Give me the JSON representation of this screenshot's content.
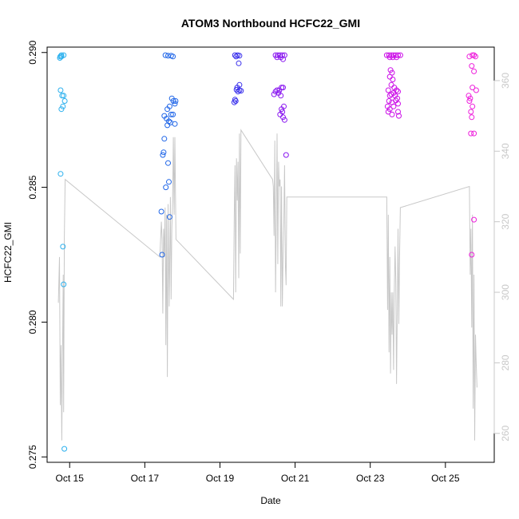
{
  "chart_data": {
    "type": "scatter",
    "title": "ATOM3 Northbound HCFC22_GMI",
    "xlabel": "Date",
    "ylabel": "HCFC22_GMI",
    "x_ticks": [
      "Oct 15",
      "Oct 17",
      "Oct 19",
      "Oct 21",
      "Oct 23",
      "Oct 25"
    ],
    "x_tick_days": [
      15,
      17,
      19,
      21,
      23,
      25
    ],
    "xlim_days": [
      14.4,
      26.3
    ],
    "ylim_left": [
      0.2748,
      0.2902
    ],
    "ylim_right": [
      251.8,
      369.5
    ],
    "y_ticks_left": [
      "0.275",
      "0.280",
      "0.285",
      "0.290"
    ],
    "y_ticks_right": [
      "260",
      "280",
      "300",
      "320",
      "340",
      "360"
    ],
    "grid": false,
    "colors": {
      "line": "#c8c8c8",
      "axis": "#000000",
      "right_axis": "#c8c8c8",
      "flight1": "#2bb0ee",
      "flight2": "#2066e8",
      "flight3": "#3a30ec",
      "flight4": "#8a18f0",
      "flight5": "#cc10e8",
      "flight6": "#ee20dc"
    },
    "series": [
      {
        "color_key": "flight1",
        "points": [
          [
            14.75,
            0.28985
          ],
          [
            14.78,
            0.2899
          ],
          [
            14.84,
            0.2899
          ],
          [
            14.78,
            0.28985
          ],
          [
            14.74,
            0.2898
          ],
          [
            14.76,
            0.2886
          ],
          [
            14.8,
            0.2884
          ],
          [
            14.84,
            0.2884
          ],
          [
            14.87,
            0.2882
          ],
          [
            14.82,
            0.288
          ],
          [
            14.78,
            0.2879
          ],
          [
            14.76,
            0.2855
          ],
          [
            14.82,
            0.2828
          ],
          [
            14.84,
            0.2814
          ],
          [
            14.86,
            0.2753
          ]
        ]
      },
      {
        "color_key": "flight2",
        "points": [
          [
            17.55,
            0.2899
          ],
          [
            17.62,
            0.28988
          ],
          [
            17.7,
            0.28988
          ],
          [
            17.75,
            0.28985
          ],
          [
            17.72,
            0.2883
          ],
          [
            17.76,
            0.2882
          ],
          [
            17.82,
            0.2882
          ],
          [
            17.8,
            0.2881
          ],
          [
            17.66,
            0.288
          ],
          [
            17.6,
            0.2879
          ],
          [
            17.7,
            0.2877
          ],
          [
            17.75,
            0.2877
          ],
          [
            17.52,
            0.28765
          ],
          [
            17.58,
            0.28755
          ],
          [
            17.64,
            0.28745
          ],
          [
            17.68,
            0.2874
          ],
          [
            17.6,
            0.2873
          ],
          [
            17.8,
            0.28735
          ],
          [
            17.52,
            0.2868
          ],
          [
            17.5,
            0.2863
          ],
          [
            17.48,
            0.2862
          ],
          [
            17.62,
            0.2859
          ],
          [
            17.64,
            0.2852
          ],
          [
            17.56,
            0.285
          ],
          [
            17.44,
            0.2841
          ],
          [
            17.66,
            0.2839
          ],
          [
            17.46,
            0.2825
          ]
        ]
      },
      {
        "color_key": "flight3",
        "points": [
          [
            19.4,
            0.2899
          ],
          [
            19.47,
            0.2899
          ],
          [
            19.52,
            0.28988
          ],
          [
            19.43,
            0.28985
          ],
          [
            19.5,
            0.2896
          ],
          [
            19.52,
            0.2888
          ],
          [
            19.46,
            0.2887
          ],
          [
            19.44,
            0.28862
          ],
          [
            19.52,
            0.2886
          ],
          [
            19.56,
            0.28858
          ],
          [
            19.48,
            0.28855
          ],
          [
            19.4,
            0.28825
          ],
          [
            19.42,
            0.2882
          ],
          [
            19.38,
            0.28815
          ]
        ]
      },
      {
        "color_key": "flight4",
        "points": [
          [
            20.48,
            0.2899
          ],
          [
            20.54,
            0.2899
          ],
          [
            20.6,
            0.2899
          ],
          [
            20.66,
            0.2899
          ],
          [
            20.72,
            0.2899
          ],
          [
            20.52,
            0.28982
          ],
          [
            20.62,
            0.28982
          ],
          [
            20.68,
            0.28975
          ],
          [
            20.64,
            0.2887
          ],
          [
            20.68,
            0.2887
          ],
          [
            20.52,
            0.2886
          ],
          [
            20.58,
            0.2886
          ],
          [
            20.48,
            0.28855
          ],
          [
            20.56,
            0.2885
          ],
          [
            20.44,
            0.28845
          ],
          [
            20.62,
            0.2884
          ],
          [
            20.7,
            0.288
          ],
          [
            20.64,
            0.2879
          ],
          [
            20.66,
            0.2878
          ],
          [
            20.6,
            0.2877
          ],
          [
            20.68,
            0.2876
          ],
          [
            20.72,
            0.2875
          ],
          [
            20.76,
            0.2862
          ]
        ]
      },
      {
        "color_key": "flight5",
        "points": [
          [
            23.44,
            0.2899
          ],
          [
            23.5,
            0.2899
          ],
          [
            23.56,
            0.2899
          ],
          [
            23.62,
            0.2899
          ],
          [
            23.68,
            0.2899
          ],
          [
            23.74,
            0.2899
          ],
          [
            23.8,
            0.2899
          ],
          [
            23.52,
            0.28982
          ],
          [
            23.6,
            0.28982
          ],
          [
            23.7,
            0.28982
          ],
          [
            23.54,
            0.28935
          ],
          [
            23.58,
            0.28925
          ],
          [
            23.52,
            0.2891
          ],
          [
            23.6,
            0.289
          ],
          [
            23.56,
            0.2888
          ],
          [
            23.64,
            0.2887
          ],
          [
            23.7,
            0.2886
          ],
          [
            23.48,
            0.2886
          ],
          [
            23.74,
            0.28855
          ],
          [
            23.62,
            0.2885
          ],
          [
            23.56,
            0.28845
          ],
          [
            23.52,
            0.2884
          ],
          [
            23.66,
            0.2884
          ],
          [
            23.72,
            0.2883
          ],
          [
            23.68,
            0.28822
          ],
          [
            23.5,
            0.2882
          ],
          [
            23.58,
            0.28815
          ],
          [
            23.74,
            0.2881
          ],
          [
            23.46,
            0.288
          ],
          [
            23.62,
            0.288
          ],
          [
            23.52,
            0.2879
          ],
          [
            23.48,
            0.2878
          ],
          [
            23.74,
            0.2878
          ],
          [
            23.58,
            0.2877
          ],
          [
            23.76,
            0.28765
          ]
        ]
      },
      {
        "color_key": "flight6",
        "points": [
          [
            25.64,
            0.28985
          ],
          [
            25.72,
            0.2899
          ],
          [
            25.76,
            0.2899
          ],
          [
            25.8,
            0.28985
          ],
          [
            25.7,
            0.2895
          ],
          [
            25.76,
            0.2893
          ],
          [
            25.72,
            0.2887
          ],
          [
            25.82,
            0.2886
          ],
          [
            25.62,
            0.2884
          ],
          [
            25.66,
            0.2883
          ],
          [
            25.64,
            0.2882
          ],
          [
            25.72,
            0.288
          ],
          [
            25.68,
            0.2878
          ],
          [
            25.7,
            0.2876
          ],
          [
            25.68,
            0.287
          ],
          [
            25.76,
            0.287
          ],
          [
            25.76,
            0.2838
          ],
          [
            25.7,
            0.2825
          ]
        ]
      }
    ],
    "flight_track": {
      "axis": "right",
      "x": [
        14.7,
        14.73,
        14.75,
        14.77,
        14.79,
        14.81,
        14.83,
        14.84,
        14.86,
        14.88,
        17.4,
        17.44,
        17.46,
        17.48,
        17.5,
        17.52,
        17.54,
        17.56,
        17.58,
        17.6,
        17.62,
        17.65,
        17.68,
        17.7,
        17.72,
        17.74,
        17.76,
        17.78,
        17.8,
        17.83,
        19.36,
        19.38,
        19.4,
        19.42,
        19.44,
        19.46,
        19.48,
        19.5,
        19.52,
        19.54,
        19.56,
        20.4,
        20.42,
        20.44,
        20.46,
        20.48,
        20.5,
        20.52,
        20.54,
        20.56,
        20.58,
        20.6,
        20.62,
        20.64,
        20.66,
        20.68,
        20.7,
        20.72,
        20.74,
        20.76,
        20.78,
        23.44,
        23.46,
        23.48,
        23.5,
        23.52,
        23.54,
        23.56,
        23.58,
        23.6,
        23.62,
        23.64,
        23.66,
        23.68,
        23.7,
        23.72,
        23.74,
        23.76,
        23.78,
        23.8,
        25.64,
        25.66,
        25.68,
        25.7,
        25.72,
        25.74,
        25.76,
        25.78,
        25.8,
        25.82,
        25.84
      ],
      "y": [
        297,
        310,
        268,
        285,
        258,
        283,
        305,
        266,
        316,
        332,
        310,
        320,
        315,
        294,
        318,
        310,
        324,
        285,
        322,
        276,
        325,
        296,
        327,
        298,
        318,
        326,
        344,
        322,
        344,
        315,
        298,
        322,
        336,
        300,
        338,
        326,
        337,
        304,
        345,
        311,
        346,
        332,
        330,
        316,
        343,
        300,
        322,
        345,
        308,
        337,
        330,
        332,
        296,
        330,
        296,
        310,
        320,
        336,
        308,
        302,
        327,
        327,
        295,
        322,
        283,
        310,
        277,
        300,
        288,
        300,
        278,
        300,
        313,
        303,
        274,
        296,
        318,
        291,
        310,
        324,
        330,
        305,
        318,
        290,
        322,
        267,
        305,
        258,
        288,
        280,
        273
      ]
    }
  }
}
